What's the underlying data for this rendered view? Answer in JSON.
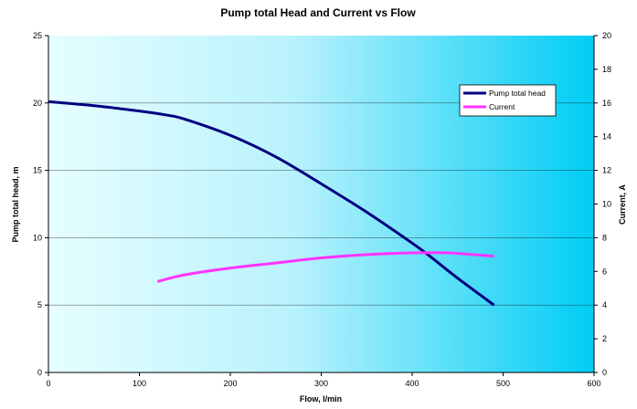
{
  "chart_data": {
    "type": "line",
    "title": "Pump total Head and Current vs Flow",
    "xlabel": "Flow, l/min",
    "ylabel_left": "Pump total head, m",
    "ylabel_right": "Current, A",
    "xlim": [
      0,
      600
    ],
    "ylim_left": [
      0,
      25
    ],
    "ylim_right": [
      0,
      20
    ],
    "x_ticks": [
      "0",
      "100",
      "200",
      "300",
      "400",
      "500",
      "600"
    ],
    "y_left_ticks": [
      "0",
      "5",
      "10",
      "15",
      "20",
      "25"
    ],
    "y_right_ticks": [
      "0",
      "2",
      "4",
      "6",
      "8",
      "10",
      "12",
      "14",
      "16",
      "18",
      "20"
    ],
    "grid": "horizontal",
    "legend_position": "upper-right",
    "background": "horizontal gradient from light cyan to bright cyan",
    "series": [
      {
        "name": "Pump total head",
        "axis": "left",
        "color": "#000080",
        "x": [
          0,
          50,
          100,
          130,
          150,
          200,
          250,
          300,
          350,
          400,
          420,
          450,
          490
        ],
        "y": [
          20.1,
          19.8,
          19.4,
          19.1,
          18.8,
          17.6,
          16.0,
          14.0,
          11.9,
          9.6,
          8.6,
          7.0,
          5.0
        ]
      },
      {
        "name": "Current",
        "axis": "right",
        "color": "#ff33ff",
        "x": [
          120,
          150,
          200,
          250,
          300,
          350,
          400,
          440,
          490
        ],
        "y": [
          5.4,
          5.8,
          6.2,
          6.5,
          6.8,
          7.0,
          7.1,
          7.1,
          6.9
        ]
      }
    ]
  }
}
